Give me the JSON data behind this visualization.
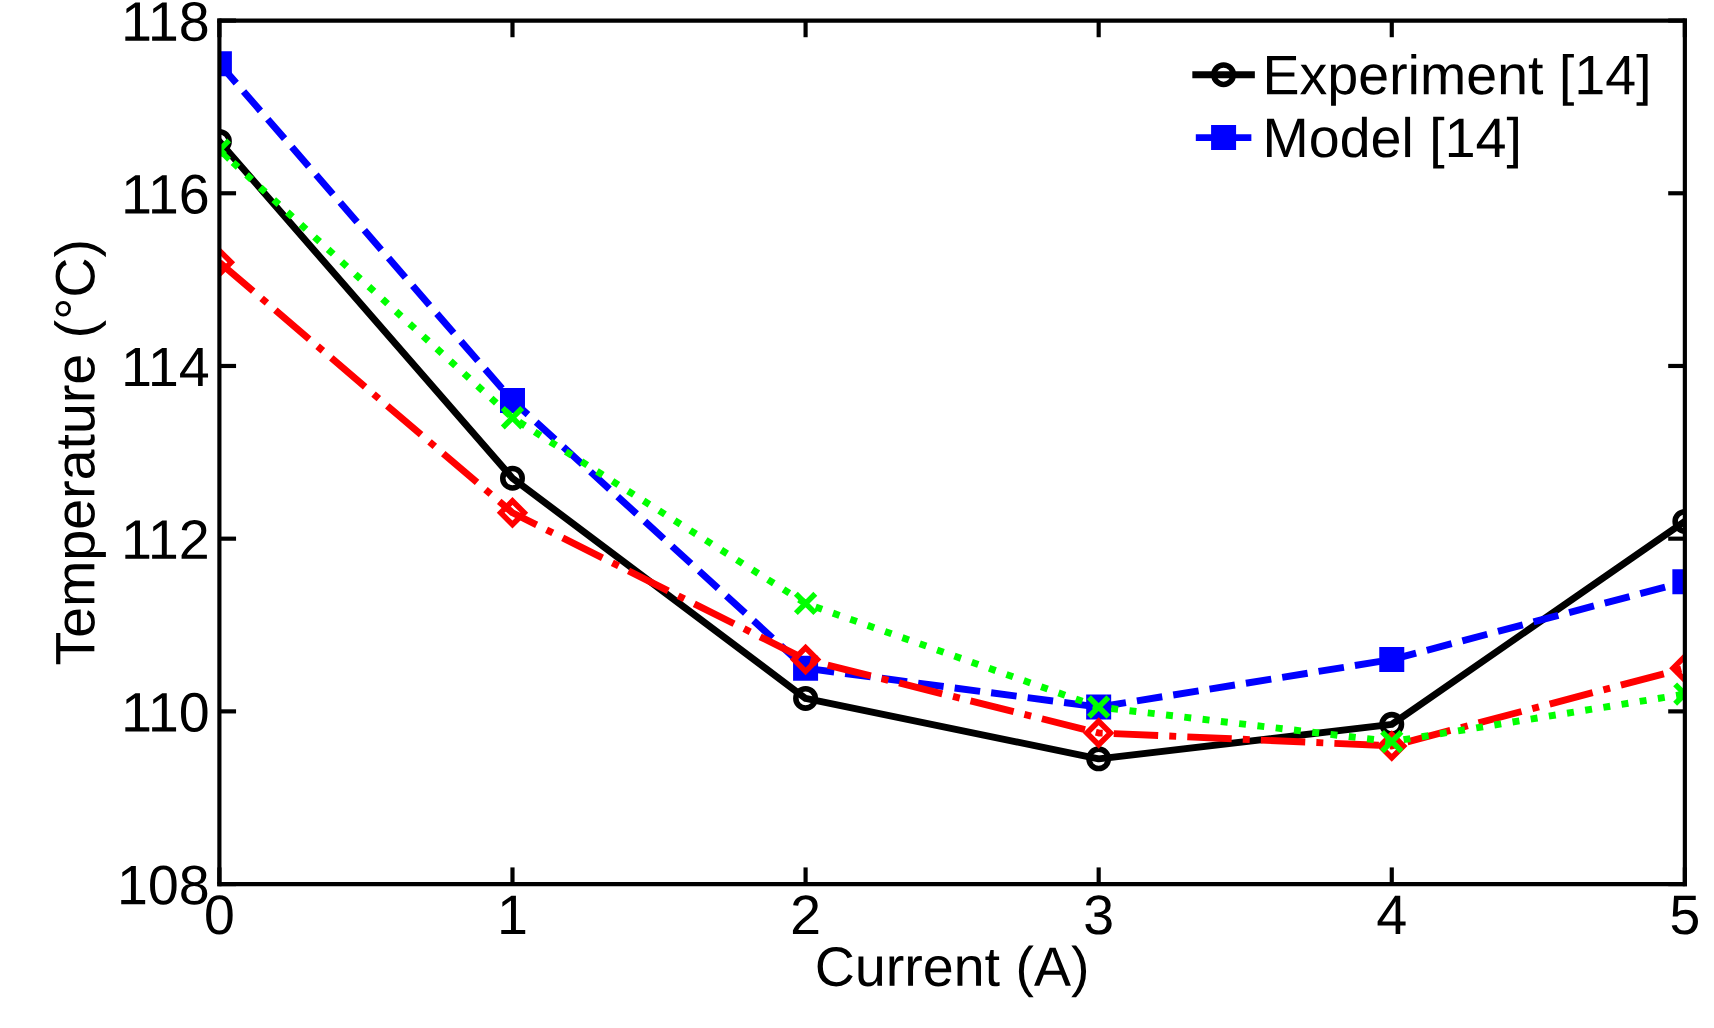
{
  "chart_data": {
    "type": "line",
    "xlabel": "Current (A)",
    "ylabel": "Temperature (°C)",
    "x": [
      0,
      1,
      2,
      3,
      4,
      5
    ],
    "series": [
      {
        "name": "Experiment [14]",
        "color": "#000000",
        "marker": "circle",
        "line_style": "solid",
        "values": [
          116.6,
          112.7,
          110.15,
          109.45,
          109.85,
          112.2
        ]
      },
      {
        "name": "Model [14]",
        "color": "#0000ff",
        "marker": "square",
        "line_style": "dashed",
        "values": [
          117.5,
          113.6,
          110.5,
          110.05,
          110.6,
          111.5
        ]
      },
      {
        "color": "#ff0000",
        "marker": "diamond",
        "line_style": "dashdot",
        "values": [
          115.2,
          112.3,
          110.6,
          109.75,
          109.6,
          110.5
        ]
      },
      {
        "color": "#00ff00",
        "marker": "cross",
        "line_style": "dotted",
        "values": [
          116.5,
          113.4,
          111.25,
          110.05,
          109.65,
          110.2
        ]
      }
    ],
    "xlim": [
      0,
      5
    ],
    "xticks": [
      0,
      1,
      2,
      3,
      4,
      5
    ],
    "ylim": [
      108,
      118
    ],
    "yticks": [
      108,
      110,
      112,
      114,
      116,
      118
    ],
    "grid": false,
    "legend": "top right"
  }
}
